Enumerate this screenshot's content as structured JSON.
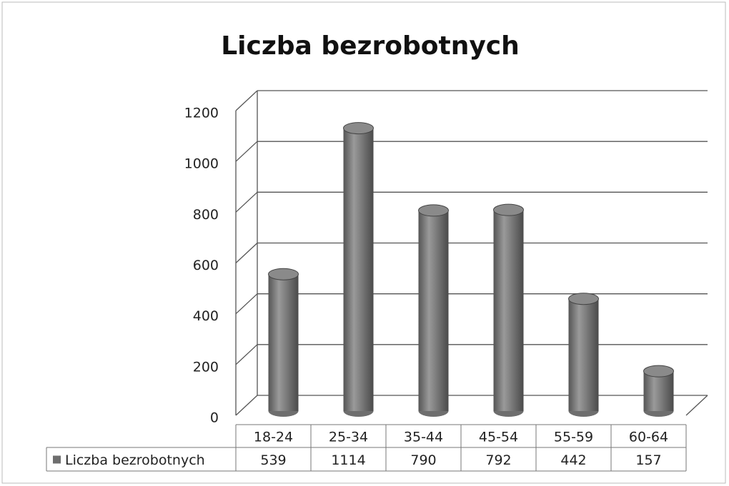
{
  "chart_data": {
    "type": "bar",
    "title": "Liczba bezrobotnych",
    "categories": [
      "18-24",
      "25-34",
      "35-44",
      "45-54",
      "55-59",
      "60-64"
    ],
    "series": [
      {
        "name": "Liczba bezrobotnych",
        "color": "#6e6e6e",
        "values": [
          539,
          1114,
          790,
          792,
          442,
          157
        ]
      }
    ],
    "ylim": [
      0,
      1200
    ],
    "yticks": [
      0,
      200,
      400,
      600,
      800,
      1000,
      1200
    ],
    "grid": true,
    "data_table": true
  }
}
